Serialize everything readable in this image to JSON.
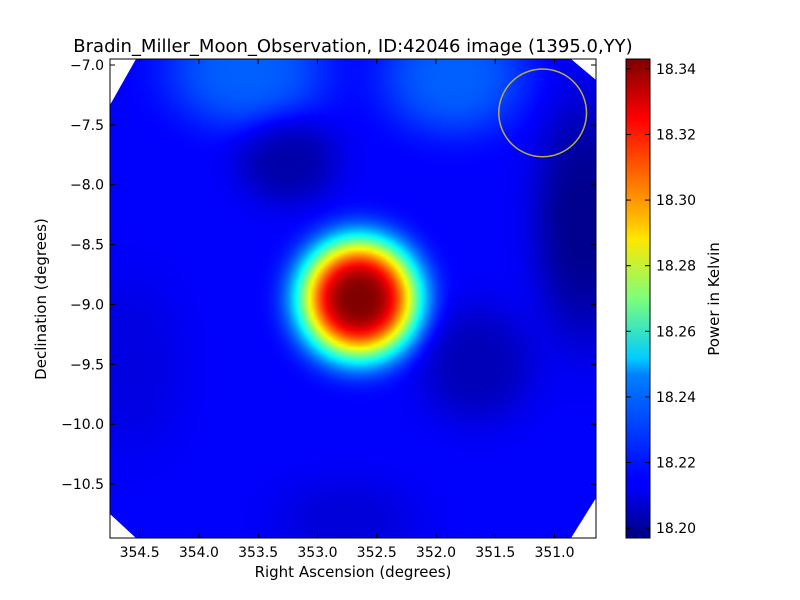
{
  "chart_data": {
    "type": "heatmap",
    "title": "Bradin_Miller_Moon_Observation, ID:42046 image (1395.0,YY)",
    "xlabel": "Right Ascension (degrees)",
    "ylabel": "Declination (degrees)",
    "xlim": [
      354.75,
      350.65
    ],
    "ylim": [
      -10.95,
      -6.95
    ],
    "x_ticks": [
      354.5,
      354.0,
      353.5,
      353.0,
      352.5,
      352.0,
      351.5,
      351.0
    ],
    "x_tick_labels": [
      "354.5",
      "354.0",
      "353.5",
      "353.0",
      "352.5",
      "352.0",
      "351.5",
      "351.0"
    ],
    "y_ticks": [
      -7.0,
      -7.5,
      -8.0,
      -8.5,
      -9.0,
      -9.5,
      -10.0,
      -10.5
    ],
    "y_tick_labels": [
      "−7.0",
      "−7.5",
      "−8.0",
      "−8.5",
      "−9.0",
      "−9.5",
      "−10.0",
      "−10.5"
    ],
    "colorbar": {
      "label": "Power in Kelvin",
      "range": [
        18.197,
        18.343
      ],
      "colormap": "jet",
      "ticks": [
        18.2,
        18.22,
        18.24,
        18.26,
        18.28,
        18.3,
        18.32,
        18.34
      ],
      "tick_labels": [
        "18.20",
        "18.22",
        "18.24",
        "18.26",
        "18.28",
        "18.30",
        "18.32",
        "18.34"
      ]
    },
    "field": {
      "background": 18.215,
      "features": [
        {
          "ra": 352.65,
          "dec": -8.95,
          "amplitude": 0.128,
          "sigma_ra": 0.4,
          "sigma_dec": 0.4
        },
        {
          "ra": 353.6,
          "dec": -7.05,
          "amplitude": 0.014,
          "sigma_ra": 0.55,
          "sigma_dec": 0.4
        },
        {
          "ra": 351.85,
          "dec": -7.1,
          "amplitude": 0.014,
          "sigma_ra": 0.5,
          "sigma_dec": 0.4
        },
        {
          "ra": 353.25,
          "dec": -7.8,
          "amplitude": -0.012,
          "sigma_ra": 0.35,
          "sigma_dec": 0.3
        },
        {
          "ra": 350.75,
          "dec": -8.3,
          "amplitude": -0.016,
          "sigma_ra": 0.35,
          "sigma_dec": 0.8
        },
        {
          "ra": 351.65,
          "dec": -9.5,
          "amplitude": -0.01,
          "sigma_ra": 0.4,
          "sigma_dec": 0.4
        },
        {
          "ra": 354.6,
          "dec": -9.5,
          "amplitude": -0.004,
          "sigma_ra": 0.4,
          "sigma_dec": 0.6
        },
        {
          "ra": 352.75,
          "dec": -10.8,
          "amplitude": -0.005,
          "sigma_ra": 0.5,
          "sigma_dec": 0.3
        }
      ]
    },
    "beam_circle": {
      "ra": 351.1,
      "dec": -7.4,
      "radius_deg": 0.37,
      "color": "#b8b040"
    },
    "colors": {
      "blank_corner": "#ffffff",
      "axes": "#000000"
    }
  }
}
